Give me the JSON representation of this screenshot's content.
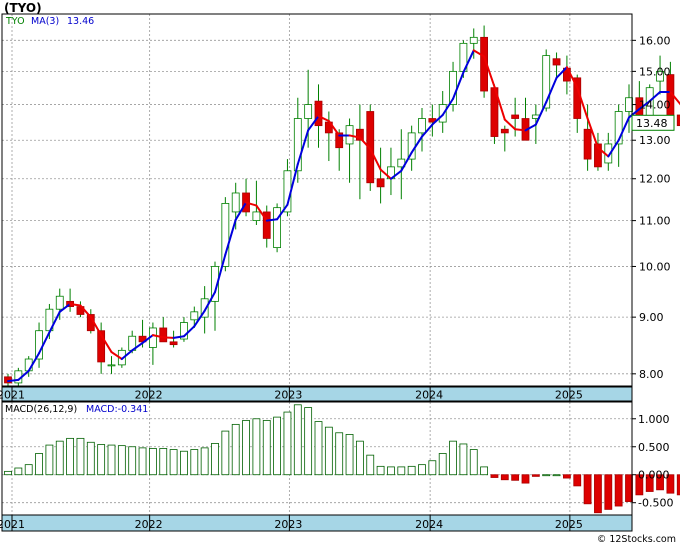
{
  "header": {
    "title": "(TYO)",
    "legend_symbol": "TYO",
    "legend_ma_label": "MA(3)",
    "legend_ma_value": "13.46",
    "last_price": "13.48",
    "macd_legend_label": "MACD(26,12,9)",
    "macd_legend_value": "MACD:-0.341",
    "watermark": "© 12Stocks.com"
  },
  "colors": {
    "up_candle": "#ffffff",
    "down_candle": "#dd0000",
    "candle_outline": "#008000",
    "ma_up": "#0000dd",
    "ma_down": "#ee0000",
    "macd_pos": "#ffffff",
    "macd_neg": "#dd0000",
    "macd_outline": "#006000",
    "year_band": "#a6d6e6",
    "grid": "#999999"
  },
  "chart_data": [
    {
      "type": "candlestick",
      "name": "price",
      "period": "monthly",
      "scale": "log",
      "ylim": [
        7.8,
        16.9
      ],
      "yticks": [
        "8.00",
        "9.00",
        "10.00",
        "11.00",
        "12.00",
        "13.00",
        "14.00",
        "15.00",
        "16.00"
      ],
      "x_labels": [
        "2021",
        "2022",
        "2023",
        "2024",
        "2025"
      ],
      "grid": true,
      "ohlc": [
        [
          7.95,
          8.0,
          7.7,
          7.85
        ],
        [
          7.85,
          8.1,
          7.8,
          8.05
        ],
        [
          8.05,
          8.3,
          7.95,
          8.25
        ],
        [
          8.25,
          8.9,
          8.1,
          8.75
        ],
        [
          8.75,
          9.25,
          8.6,
          9.15
        ],
        [
          9.15,
          9.55,
          8.95,
          9.4
        ],
        [
          9.3,
          9.55,
          9.1,
          9.2
        ],
        [
          9.2,
          9.3,
          9.0,
          9.05
        ],
        [
          9.05,
          9.15,
          8.7,
          8.75
        ],
        [
          8.75,
          8.9,
          8.0,
          8.2
        ],
        [
          8.15,
          8.3,
          8.0,
          8.15
        ],
        [
          8.15,
          8.45,
          8.1,
          8.4
        ],
        [
          8.4,
          8.75,
          8.35,
          8.65
        ],
        [
          8.65,
          8.95,
          8.45,
          8.55
        ],
        [
          8.45,
          8.9,
          8.15,
          8.8
        ],
        [
          8.8,
          9.0,
          8.55,
          8.55
        ],
        [
          8.55,
          8.75,
          8.45,
          8.5
        ],
        [
          8.6,
          9.0,
          8.55,
          8.9
        ],
        [
          8.95,
          9.2,
          8.8,
          9.1
        ],
        [
          9.0,
          9.6,
          8.7,
          9.35
        ],
        [
          9.3,
          10.1,
          8.75,
          10.0
        ],
        [
          10.0,
          11.55,
          9.9,
          11.4
        ],
        [
          11.2,
          11.9,
          10.8,
          11.65
        ],
        [
          11.65,
          12.0,
          11.1,
          11.2
        ],
        [
          11.0,
          11.95,
          10.9,
          11.2
        ],
        [
          11.2,
          11.35,
          10.4,
          10.6
        ],
        [
          10.4,
          11.4,
          10.3,
          11.3
        ],
        [
          11.2,
          12.5,
          11.1,
          12.2
        ],
        [
          12.2,
          14.2,
          11.9,
          13.6
        ],
        [
          13.6,
          15.05,
          12.8,
          14.0
        ],
        [
          14.1,
          14.6,
          12.8,
          13.4
        ],
        [
          13.5,
          13.8,
          12.45,
          13.2
        ],
        [
          13.2,
          13.3,
          12.2,
          12.8
        ],
        [
          12.9,
          13.6,
          11.9,
          13.4
        ],
        [
          13.3,
          14.0,
          11.5,
          13.0
        ],
        [
          13.8,
          14.0,
          11.7,
          11.9
        ],
        [
          12.0,
          12.8,
          11.4,
          11.8
        ],
        [
          12.0,
          12.8,
          11.6,
          12.3
        ],
        [
          12.3,
          13.3,
          11.5,
          12.5
        ],
        [
          12.5,
          13.4,
          12.2,
          13.2
        ],
        [
          13.2,
          13.9,
          12.7,
          13.6
        ],
        [
          13.6,
          14.0,
          13.1,
          13.5
        ],
        [
          13.5,
          14.4,
          13.2,
          14.0
        ],
        [
          14.0,
          15.3,
          13.8,
          15.0
        ],
        [
          15.0,
          16.0,
          14.8,
          15.9
        ],
        [
          15.9,
          16.4,
          15.4,
          16.1
        ],
        [
          16.1,
          16.5,
          14.2,
          14.4
        ],
        [
          14.5,
          14.6,
          12.9,
          13.1
        ],
        [
          13.3,
          13.4,
          12.7,
          13.2
        ],
        [
          13.7,
          14.2,
          13.1,
          13.6
        ],
        [
          13.6,
          14.2,
          13.0,
          13.0
        ],
        [
          13.6,
          14.0,
          12.9,
          13.7
        ],
        [
          13.9,
          15.7,
          13.8,
          15.5
        ],
        [
          15.4,
          15.6,
          14.8,
          15.2
        ],
        [
          15.1,
          15.5,
          14.3,
          14.7
        ],
        [
          14.8,
          14.9,
          13.2,
          13.6
        ],
        [
          13.3,
          14.0,
          12.2,
          12.5
        ],
        [
          12.9,
          13.2,
          12.2,
          12.3
        ],
        [
          12.4,
          13.2,
          12.2,
          12.9
        ],
        [
          12.9,
          14.0,
          12.3,
          13.8
        ],
        [
          13.8,
          14.6,
          13.2,
          14.2
        ],
        [
          14.2,
          14.7,
          13.4,
          13.6
        ],
        [
          13.6,
          14.6,
          13.3,
          14.5
        ],
        [
          14.7,
          15.5,
          14.3,
          15.0
        ],
        [
          14.9,
          15.3,
          13.4,
          13.6
        ],
        [
          13.7,
          14.3,
          13.4,
          13.4
        ],
        [
          13.5,
          14.6,
          12.6,
          13.3
        ],
        [
          13.3,
          13.6,
          13.2,
          13.48
        ]
      ],
      "moving_average": {
        "name": "MA(3)",
        "values": [
          7.88,
          7.9,
          8.05,
          8.35,
          8.72,
          9.1,
          9.25,
          9.22,
          9.0,
          8.67,
          8.37,
          8.25,
          8.4,
          8.53,
          8.67,
          8.63,
          8.62,
          8.65,
          8.83,
          9.12,
          9.48,
          10.25,
          11.02,
          11.42,
          11.35,
          11.0,
          11.03,
          11.37,
          12.37,
          13.27,
          13.67,
          13.53,
          13.13,
          13.13,
          13.07,
          12.77,
          12.23,
          12.0,
          12.2,
          12.67,
          13.1,
          13.43,
          13.7,
          14.17,
          14.97,
          15.67,
          15.47,
          14.53,
          13.57,
          13.3,
          13.27,
          13.43,
          14.07,
          14.8,
          15.13,
          14.5,
          13.6,
          12.8,
          12.57,
          13.0,
          13.63,
          13.87,
          14.1,
          14.37,
          14.37,
          14.0,
          13.43,
          13.46
        ]
      }
    },
    {
      "type": "bar",
      "name": "MACD(26,12,9)",
      "ylim": [
        -0.72,
        1.3
      ],
      "yticks": [
        "1.000",
        "0.500",
        "0.000",
        "-0.500"
      ],
      "x_labels": [
        "2021",
        "2022",
        "2023",
        "2024",
        "2025"
      ],
      "grid": true,
      "values": [
        0.06,
        0.12,
        0.18,
        0.38,
        0.53,
        0.6,
        0.65,
        0.65,
        0.58,
        0.54,
        0.53,
        0.52,
        0.5,
        0.48,
        0.47,
        0.47,
        0.45,
        0.42,
        0.45,
        0.48,
        0.56,
        0.78,
        0.9,
        0.97,
        1.0,
        0.97,
        1.03,
        1.12,
        1.25,
        1.2,
        0.95,
        0.85,
        0.75,
        0.72,
        0.6,
        0.35,
        0.15,
        0.14,
        0.14,
        0.15,
        0.18,
        0.25,
        0.38,
        0.6,
        0.55,
        0.45,
        0.14,
        -0.05,
        -0.09,
        -0.1,
        -0.15,
        -0.03,
        0.0,
        0.0,
        -0.06,
        -0.2,
        -0.52,
        -0.68,
        -0.62,
        -0.56,
        -0.48,
        -0.36,
        -0.3,
        -0.27,
        -0.33,
        -0.36,
        -0.4,
        -0.34
      ]
    }
  ]
}
